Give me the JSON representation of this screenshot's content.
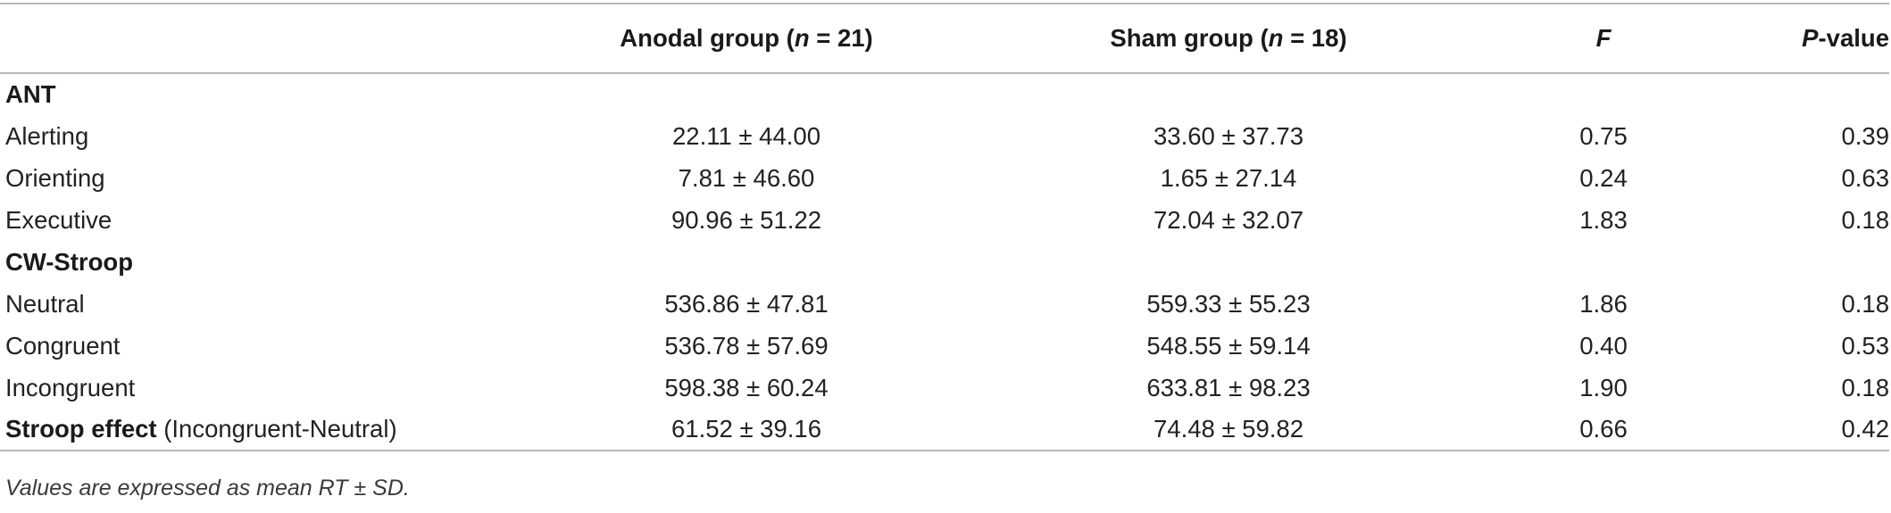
{
  "header": {
    "label": "",
    "anodal": "Anodal group (n = 21)",
    "anodal_pre": "Anodal group (",
    "anodal_n": "n",
    "anodal_post": " = 21)",
    "sham_pre": "Sham group (",
    "sham_n": "n",
    "sham_post": " = 18)",
    "f": "F",
    "p_italic": "P",
    "p_rest": "-value"
  },
  "sections": [
    {
      "title": "ANT",
      "rows": [
        {
          "label": "Alerting",
          "anodal": "22.11 ± 44.00",
          "sham": "33.60 ± 37.73",
          "f": "0.75",
          "p": "0.39"
        },
        {
          "label": "Orienting",
          "anodal": "7.81 ± 46.60",
          "sham": "1.65 ± 27.14",
          "f": "0.24",
          "p": "0.63"
        },
        {
          "label": "Executive",
          "anodal": "90.96 ± 51.22",
          "sham": "72.04 ± 32.07",
          "f": "1.83",
          "p": "0.18"
        }
      ]
    },
    {
      "title": "CW-Stroop",
      "rows": [
        {
          "label": "Neutral",
          "anodal": "536.86 ± 47.81",
          "sham": "559.33 ± 55.23",
          "f": "1.86",
          "p": "0.18"
        },
        {
          "label": "Congruent",
          "anodal": "536.78 ± 57.69",
          "sham": "548.55 ± 59.14",
          "f": "0.40",
          "p": "0.53"
        },
        {
          "label": "Incongruent",
          "anodal": "598.38 ± 60.24",
          "sham": "633.81 ± 98.23",
          "f": "1.90",
          "p": "0.18"
        }
      ]
    }
  ],
  "stroop_effect": {
    "label_bold": "Stroop effect",
    "label_rest": " (Incongruent-Neutral)",
    "anodal": "61.52 ± 39.16",
    "sham": "74.48 ± 59.82",
    "f": "0.66",
    "p": "0.42"
  },
  "note": "Values are expressed as mean RT ± SD."
}
